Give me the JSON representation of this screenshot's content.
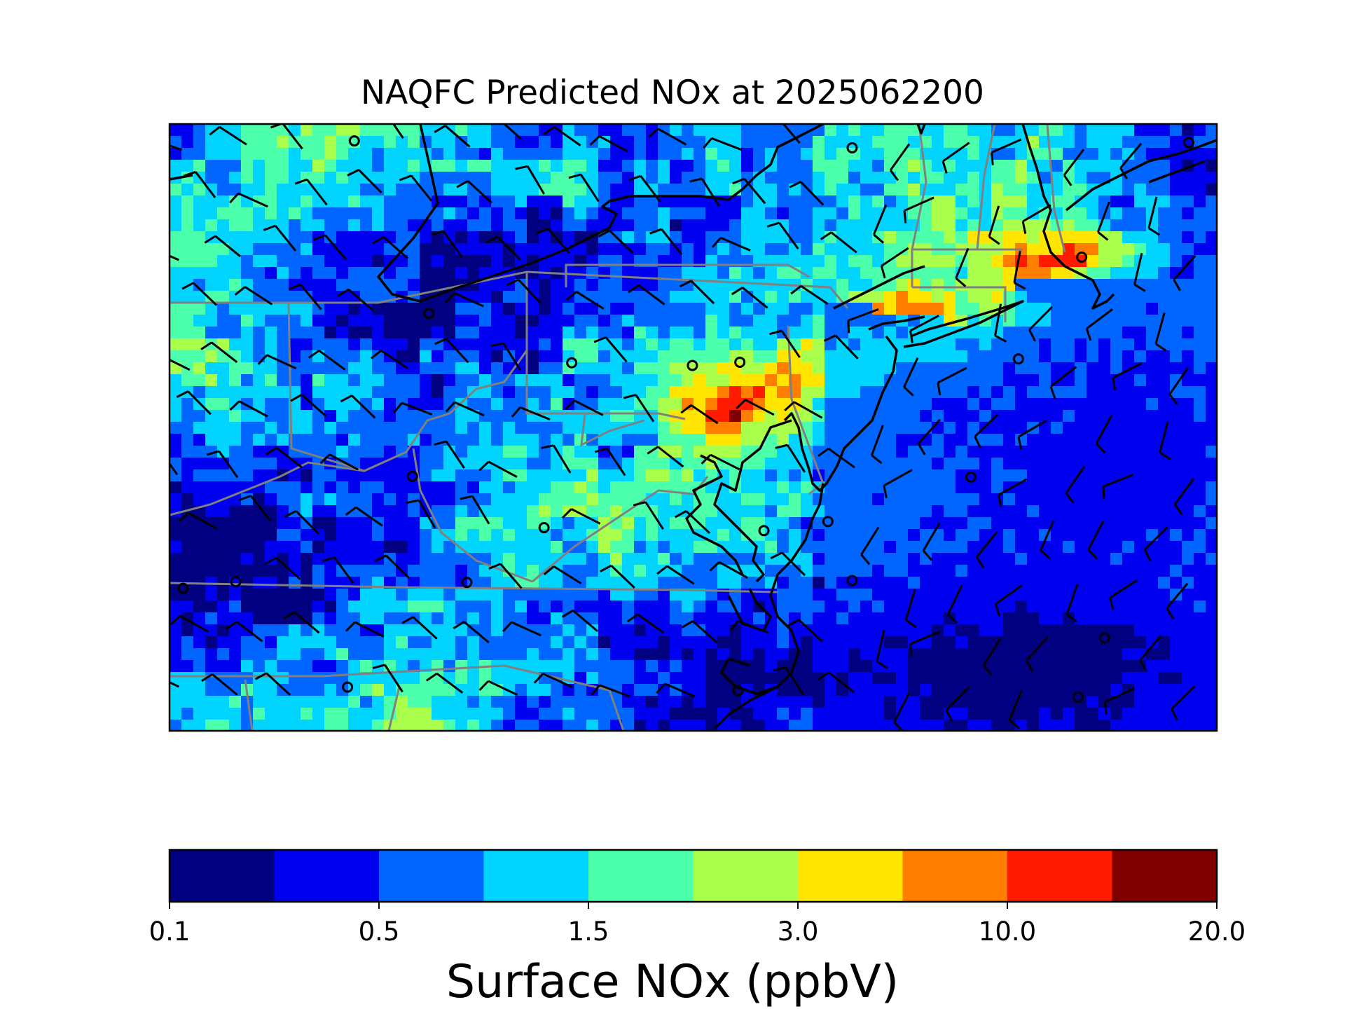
{
  "title": "NAQFC Predicted NOx at 2025062200",
  "colorbar": {
    "label": "Surface NOx (ppbV)",
    "tick_labels": [
      "0.1",
      "0.5",
      "1.5",
      "3.0",
      "10.0",
      "20.0"
    ],
    "colors": [
      "#000080",
      "#0000f0",
      "#0066ff",
      "#00d4ff",
      "#4cffaa",
      "#aaff4c",
      "#ffe500",
      "#ff7e00",
      "#ff1a00",
      "#800000"
    ]
  },
  "map": {
    "region": "US Northeast / Mid-Atlantic",
    "features": [
      "NOx concentration grid",
      "state borders",
      "coastlines",
      "wind barbs",
      "calm wind circles"
    ],
    "border_color": "#808080",
    "coast_color": "#000000"
  }
}
